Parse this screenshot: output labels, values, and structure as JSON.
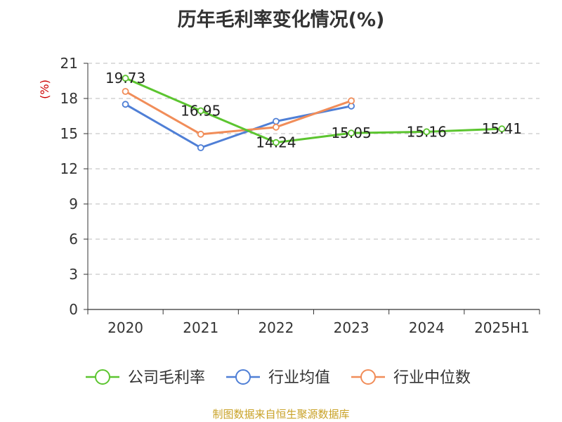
{
  "chart_data": {
    "type": "line",
    "title": "历年毛利率变化情况(%)",
    "ylabel": "(%)",
    "xlabel": "",
    "categories": [
      "2020",
      "2021",
      "2022",
      "2023",
      "2024",
      "2025H1"
    ],
    "yticks": [
      "0",
      "3",
      "6",
      "9",
      "12",
      "15",
      "18",
      "21"
    ],
    "ylim": [
      0,
      21
    ],
    "grid": true,
    "legend": "bottom",
    "series": [
      {
        "name": "公司毛利率",
        "color": "#5cc530",
        "values": [
          19.73,
          16.95,
          14.24,
          15.05,
          15.16,
          15.41
        ],
        "labels": [
          "19.73",
          "16.95",
          "14.24",
          "15.05",
          "15.16",
          "15.41"
        ]
      },
      {
        "name": "行业均值",
        "color": "#4f7fd6",
        "values": [
          17.5,
          13.8,
          16.05,
          17.35,
          null,
          null
        ]
      },
      {
        "name": "行业中位数",
        "color": "#f18d59",
        "values": [
          18.6,
          14.95,
          15.55,
          17.8,
          null,
          null
        ]
      }
    ]
  },
  "source": "制图数据来自恒生聚源数据库",
  "colors": {
    "unit_label": "#cc0000",
    "axis": "#333333",
    "grid": "#bbbbbb"
  }
}
